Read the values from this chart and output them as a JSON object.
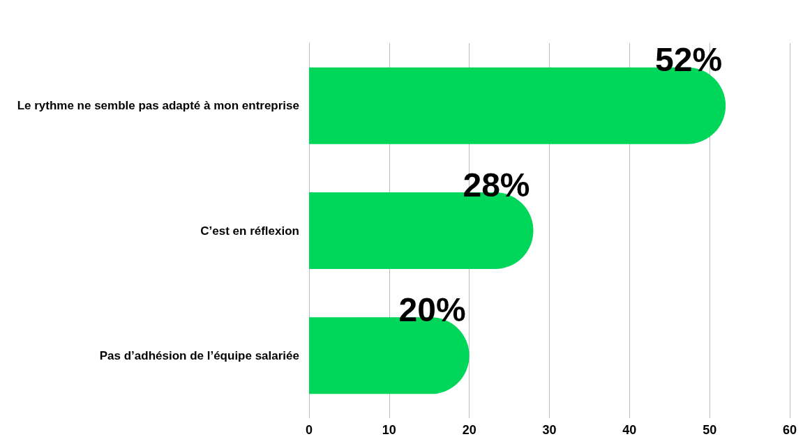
{
  "chart_data": {
    "type": "bar",
    "orientation": "horizontal",
    "categories": [
      "Le rythme ne semble pas adapté à mon entreprise",
      "C’est en réflexion",
      "Pas d’adhésion de l’équipe salariée"
    ],
    "values": [
      52,
      28,
      20
    ],
    "value_labels": [
      "52%",
      "28%",
      "20%"
    ],
    "color": "#00d65a",
    "xlim": [
      0,
      60
    ],
    "xticks": [
      0,
      10,
      20,
      30,
      40,
      50,
      60
    ],
    "grid": "x"
  }
}
